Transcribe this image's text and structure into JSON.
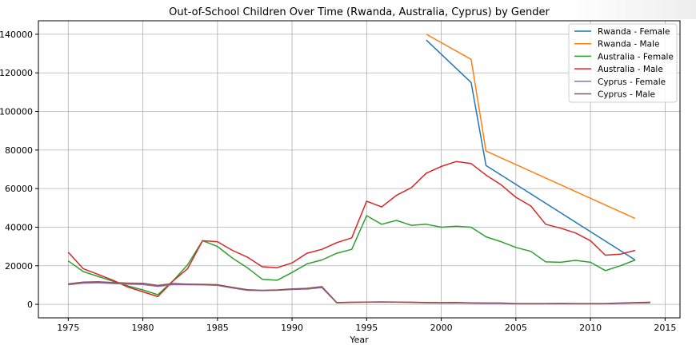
{
  "chart_data": {
    "type": "line",
    "title": "Out-of-School Children Over Time (Rwanda, Australia, Cyprus) by Gender",
    "xlabel": "Year",
    "ylabel": "",
    "xlim": [
      1973,
      2016
    ],
    "ylim": [
      -7000,
      147000
    ],
    "xticks": [
      1975,
      1980,
      1985,
      1990,
      1995,
      2000,
      2005,
      2010,
      2015
    ],
    "yticks": [
      0,
      20000,
      40000,
      60000,
      80000,
      100000,
      120000,
      140000
    ],
    "grid": true,
    "legend_position": "top-right",
    "series": [
      {
        "name": "Rwanda - Female",
        "color": "#1f77b4",
        "x": [
          1999,
          2002,
          2003,
          2013
        ],
        "y": [
          137000,
          115000,
          72000,
          23000
        ]
      },
      {
        "name": "Rwanda - Male",
        "color": "#ff7f0e",
        "x": [
          1999,
          2002,
          2003,
          2013
        ],
        "y": [
          140000,
          127000,
          79500,
          44500
        ]
      },
      {
        "name": "Australia - Female",
        "color": "#2ca02c",
        "x": [
          1975,
          1976,
          1977,
          1978,
          1979,
          1980,
          1981,
          1982,
          1983,
          1984,
          1985,
          1986,
          1987,
          1988,
          1989,
          1990,
          1991,
          1992,
          1993,
          1994,
          1995,
          1996,
          1997,
          1998,
          1999,
          2000,
          2001,
          2002,
          2003,
          2004,
          2005,
          2006,
          2007,
          2008,
          2009,
          2010,
          2011,
          2012,
          2013
        ],
        "y": [
          22500,
          17000,
          14500,
          12000,
          9500,
          7500,
          5000,
          12000,
          20500,
          33000,
          30000,
          24000,
          19000,
          13000,
          12500,
          16500,
          21000,
          23000,
          26500,
          28500,
          46000,
          41500,
          43500,
          41000,
          41500,
          40000,
          40500,
          40000,
          35000,
          32500,
          29500,
          27500,
          22000,
          21800,
          22800,
          21800,
          17500,
          20000,
          23000
        ]
      },
      {
        "name": "Australia - Male",
        "color": "#d62728",
        "x": [
          1975,
          1976,
          1977,
          1978,
          1979,
          1980,
          1981,
          1982,
          1983,
          1984,
          1985,
          1986,
          1987,
          1988,
          1989,
          1990,
          1991,
          1992,
          1993,
          1994,
          1995,
          1996,
          1997,
          1998,
          1999,
          2000,
          2001,
          2002,
          2003,
          2004,
          2005,
          2006,
          2007,
          2008,
          2009,
          2010,
          2011,
          2012,
          2013
        ],
        "y": [
          27000,
          18500,
          15500,
          12500,
          9000,
          6500,
          4000,
          12000,
          18500,
          33000,
          32500,
          28000,
          24500,
          19500,
          19000,
          21500,
          26500,
          28500,
          32000,
          34500,
          53500,
          50500,
          56500,
          60500,
          68000,
          71500,
          74000,
          73000,
          67000,
          62000,
          55500,
          51000,
          41500,
          39500,
          37000,
          33000,
          25500,
          26000,
          28000
        ]
      },
      {
        "name": "Cyprus - Female",
        "color": "#9467bd",
        "x": [
          1975,
          1976,
          1977,
          1978,
          1979,
          1980,
          1981,
          1982,
          1983,
          1984,
          1985,
          1986,
          1987,
          1988,
          1989,
          1990,
          1991,
          1992,
          1993,
          1994,
          1995,
          1996,
          1997,
          1998,
          1999,
          2000,
          2001,
          2002,
          2003,
          2004,
          2005,
          2006,
          2007,
          2008,
          2009,
          2010,
          2011,
          2012,
          2013,
          2014
        ],
        "y": [
          10200,
          11000,
          11200,
          10800,
          10500,
          10300,
          9300,
          10200,
          10200,
          10100,
          9800,
          8500,
          7300,
          7100,
          7300,
          7700,
          7900,
          8700,
          800,
          1000,
          1100,
          1200,
          1100,
          1000,
          800,
          700,
          800,
          600,
          500,
          500,
          300,
          300,
          300,
          300,
          300,
          300,
          300,
          500,
          700,
          800
        ]
      },
      {
        "name": "Cyprus - Male",
        "color": "#8c564b",
        "x": [
          1975,
          1976,
          1977,
          1978,
          1979,
          1980,
          1981,
          1982,
          1983,
          1984,
          1985,
          1986,
          1987,
          1988,
          1989,
          1990,
          1991,
          1992,
          1993,
          1994,
          1995,
          1996,
          1997,
          1998,
          1999,
          2000,
          2001,
          2002,
          2003,
          2004,
          2005,
          2006,
          2007,
          2008,
          2009,
          2010,
          2011,
          2012,
          2013,
          2014
        ],
        "y": [
          10600,
          11500,
          11700,
          11300,
          11000,
          10900,
          9800,
          10800,
          10500,
          10400,
          10200,
          8800,
          7600,
          7300,
          7500,
          8000,
          8300,
          9200,
          900,
          1100,
          1200,
          1300,
          1200,
          1100,
          1000,
          900,
          1000,
          800,
          700,
          700,
          400,
          400,
          400,
          500,
          400,
          400,
          400,
          700,
          900,
          1100
        ]
      }
    ]
  }
}
